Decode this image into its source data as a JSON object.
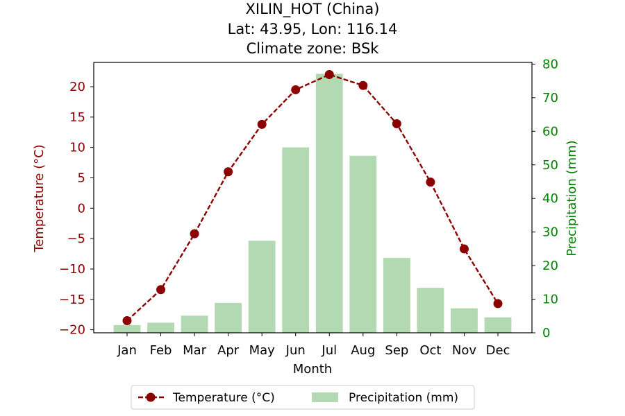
{
  "chart_data": {
    "type": "bar",
    "title_lines": [
      "XILIN_HOT (China)",
      "Lat: 43.95, Lon: 116.14",
      "Climate zone: BSk"
    ],
    "xlabel": "Month",
    "categories": [
      "Jan",
      "Feb",
      "Mar",
      "Apr",
      "May",
      "Jun",
      "Jul",
      "Aug",
      "Sep",
      "Oct",
      "Nov",
      "Dec"
    ],
    "left_axis": {
      "label": "Temperature (°C)",
      "color": "#8b0000",
      "ylim": [
        -20.5,
        24
      ],
      "ticks": [
        -20,
        -15,
        -10,
        -5,
        0,
        5,
        10,
        15,
        20
      ],
      "tick_labels": [
        "−20",
        "−15",
        "−10",
        "−5",
        "0",
        "5",
        "10",
        "15",
        "20"
      ]
    },
    "right_axis": {
      "label": "Precipitation (mm)",
      "color": "#008000",
      "ylim": [
        0,
        80.5
      ],
      "ticks": [
        0,
        10,
        20,
        30,
        40,
        50,
        60,
        70,
        80
      ],
      "tick_labels": [
        "0",
        "10",
        "20",
        "30",
        "40",
        "50",
        "60",
        "70",
        "80"
      ]
    },
    "series": [
      {
        "name": "Temperature (°C)",
        "kind": "line",
        "axis": "left",
        "color": "#8b0000",
        "style": "dashed",
        "marker": "circle",
        "values": [
          -18.5,
          -13.4,
          -4.2,
          6.0,
          13.8,
          19.5,
          22.0,
          20.2,
          13.9,
          4.3,
          -6.7,
          -15.7
        ]
      },
      {
        "name": "Precipitation (mm)",
        "kind": "bar",
        "axis": "right",
        "color": "#b2d9b2",
        "values": [
          2.3,
          3.0,
          5.1,
          8.9,
          27.4,
          55.2,
          77.1,
          52.7,
          22.3,
          13.4,
          7.3,
          4.6
        ]
      }
    ],
    "legend": {
      "position": "bottom-center",
      "entries": [
        "Temperature (°C)",
        "Precipitation (mm)"
      ]
    },
    "grid": false
  }
}
